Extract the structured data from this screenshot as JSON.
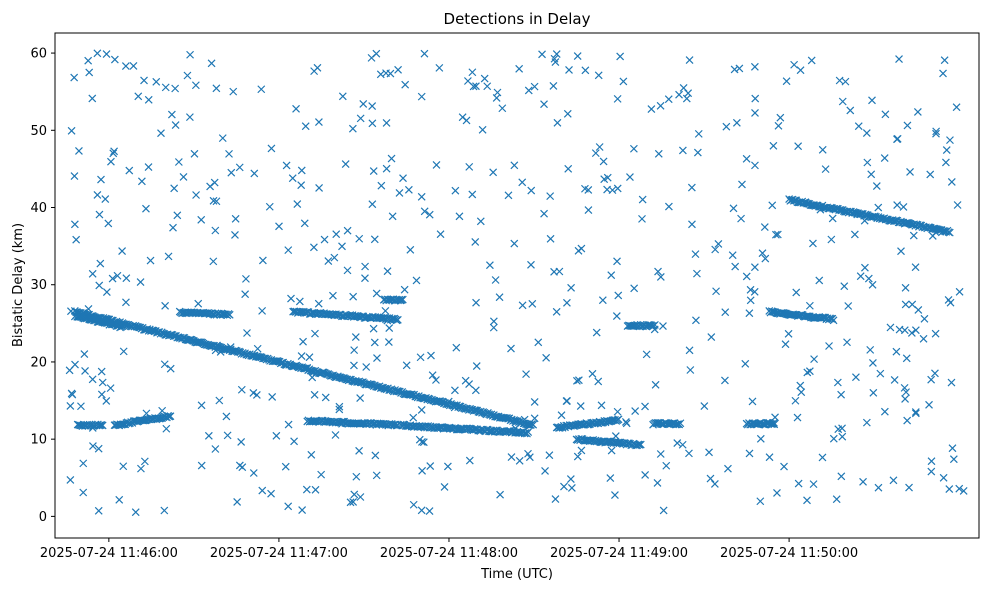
{
  "chart_data": {
    "type": "scatter",
    "title": "Detections in Delay",
    "xlabel": "Time (UTC)",
    "ylabel": "Bistatic Delay (km)",
    "x_ticks": [
      "2025-07-24 11:46:00",
      "2025-07-24 11:47:00",
      "2025-07-24 11:48:00",
      "2025-07-24 11:49:00",
      "2025-07-24 11:50:00"
    ],
    "y_ticks": [
      0,
      10,
      20,
      30,
      40,
      50,
      60
    ],
    "xlim": [
      "2025-07-24 11:45:41",
      "2025-07-24 11:51:07"
    ],
    "ylim": [
      -2.8,
      62.6
    ],
    "grid": false,
    "marker": "x",
    "color": "#1f77b4",
    "tracks": [
      {
        "start": "2025-07-24 11:45:48",
        "end": "2025-07-24 11:48:30",
        "y_start": 26.5,
        "y_end": 11.8
      },
      {
        "start": "2025-07-24 11:50:00",
        "end": "2025-07-24 11:50:57",
        "y_start": 41.0,
        "y_end": 36.8
      },
      {
        "start": "2025-07-24 11:45:49",
        "end": "2025-07-24 11:45:58",
        "y_start": 11.8,
        "y_end": 11.8
      },
      {
        "start": "2025-07-24 11:46:02",
        "end": "2025-07-24 11:46:22",
        "y_start": 11.8,
        "y_end": 13.0
      },
      {
        "start": "2025-07-24 11:46:25",
        "end": "2025-07-24 11:46:43",
        "y_start": 26.4,
        "y_end": 26.1
      },
      {
        "start": "2025-07-24 11:47:05",
        "end": "2025-07-24 11:47:42",
        "y_start": 26.5,
        "y_end": 25.5
      },
      {
        "start": "2025-07-24 11:47:37",
        "end": "2025-07-24 11:47:44",
        "y_start": 28.0,
        "y_end": 28.0
      },
      {
        "start": "2025-07-24 11:47:10",
        "end": "2025-07-24 11:47:42",
        "y_start": 12.4,
        "y_end": 11.8
      },
      {
        "start": "2025-07-24 11:47:43",
        "end": "2025-07-24 11:48:28",
        "y_start": 11.8,
        "y_end": 10.8
      },
      {
        "start": "2025-07-24 11:48:38",
        "end": "2025-07-24 11:49:00",
        "y_start": 11.5,
        "y_end": 12.5
      },
      {
        "start": "2025-07-24 11:48:45",
        "end": "2025-07-24 11:49:08",
        "y_start": 10.0,
        "y_end": 9.2
      },
      {
        "start": "2025-07-24 11:49:03",
        "end": "2025-07-24 11:49:13",
        "y_start": 24.7,
        "y_end": 24.7
      },
      {
        "start": "2025-07-24 11:49:53",
        "end": "2025-07-24 11:50:16",
        "y_start": 26.5,
        "y_end": 25.5
      },
      {
        "start": "2025-07-24 11:49:45",
        "end": "2025-07-24 11:49:55",
        "y_start": 12.0,
        "y_end": 12.0
      },
      {
        "start": "2025-07-24 11:49:12",
        "end": "2025-07-24 11:49:22",
        "y_start": 12.0,
        "y_end": 12.0
      },
      {
        "start": "2025-07-24 11:45:48",
        "end": "2025-07-24 11:46:05",
        "y_start": 26.0,
        "y_end": 24.5
      }
    ],
    "clutter": {
      "count": 620,
      "y_range": [
        0.5,
        60
      ],
      "x_range": [
        "2025-07-24 11:45:45",
        "2025-07-24 11:51:03"
      ],
      "note": "uniformly scattered false detections"
    }
  }
}
